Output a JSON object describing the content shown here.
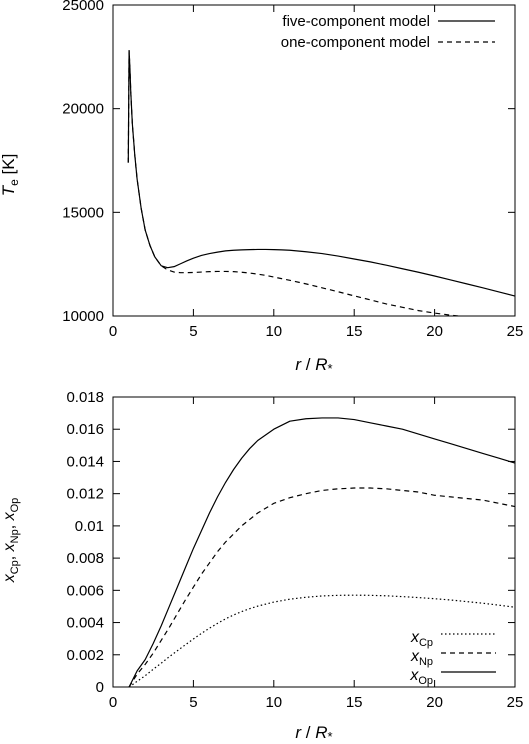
{
  "chart_data": [
    {
      "type": "line",
      "xlabel": "r / R*",
      "ylabel": "T_e [K]",
      "xlim": [
        0,
        25
      ],
      "ylim": [
        10000,
        25000
      ],
      "x_ticks": [
        "0",
        "5",
        "10",
        "15",
        "20",
        "25"
      ],
      "y_ticks": [
        "10000",
        "15000",
        "20000",
        "25000"
      ],
      "grid": false,
      "legend_position": "top-right",
      "series": [
        {
          "name": "five-component model",
          "style": "solid",
          "x": [
            0.95,
            1.0,
            1.05,
            1.1,
            1.2,
            1.35,
            1.5,
            1.75,
            2.0,
            2.3,
            2.6,
            3.0,
            3.4,
            3.8,
            4.2,
            4.6,
            5.0,
            5.5,
            6.0,
            6.5,
            7.0,
            7.5,
            8.0,
            8.5,
            9.0,
            9.5,
            10.0,
            10.5,
            11.0,
            12.0,
            13.0,
            14.0,
            15.0,
            16.0,
            17.0,
            18.0,
            19.0,
            20.0,
            21.0,
            22.0,
            23.0,
            24.0,
            25.0
          ],
          "y": [
            17400,
            22800,
            22000,
            20900,
            19300,
            17800,
            16600,
            15200,
            14150,
            13400,
            12850,
            12420,
            12330,
            12380,
            12520,
            12660,
            12790,
            12920,
            13010,
            13080,
            13140,
            13170,
            13190,
            13200,
            13210,
            13210,
            13200,
            13190,
            13170,
            13100,
            13010,
            12890,
            12750,
            12610,
            12450,
            12280,
            12110,
            11930,
            11740,
            11550,
            11360,
            11160,
            10960
          ]
        },
        {
          "name": "one-component model",
          "style": "dashed",
          "x": [
            0.95,
            1.0,
            1.05,
            1.1,
            1.2,
            1.35,
            1.5,
            1.75,
            2.0,
            2.3,
            2.6,
            3.0,
            3.4,
            3.8,
            4.2,
            4.6,
            5.0,
            5.5,
            6.0,
            6.5,
            7.0,
            7.5,
            8.0,
            8.5,
            9.0,
            9.5,
            10.0,
            11.0,
            12.0,
            13.0,
            14.0,
            15.0,
            16.0,
            17.0,
            18.0,
            19.0,
            20.0,
            21.0,
            21.5
          ],
          "y": [
            17400,
            22800,
            22000,
            20900,
            19300,
            17800,
            16600,
            15200,
            14150,
            13400,
            12850,
            12420,
            12220,
            12120,
            12090,
            12090,
            12100,
            12120,
            12140,
            12150,
            12150,
            12140,
            12110,
            12070,
            12020,
            11960,
            11880,
            11720,
            11550,
            11360,
            11170,
            10970,
            10780,
            10580,
            10420,
            10260,
            10140,
            10040,
            10000
          ]
        }
      ]
    },
    {
      "type": "line",
      "xlabel": "r / R*",
      "ylabel": "x_Cp, x_Np, x_Op",
      "xlim": [
        0,
        25
      ],
      "ylim": [
        0,
        0.018
      ],
      "x_ticks": [
        "0",
        "5",
        "10",
        "15",
        "20",
        "25"
      ],
      "y_ticks": [
        "0",
        "0.002",
        "0.004",
        "0.006",
        "0.008",
        "0.01",
        "0.012",
        "0.014",
        "0.016",
        "0.018"
      ],
      "grid": false,
      "legend_position": "bottom-right",
      "series": [
        {
          "name": "x_Cp",
          "style": "dotted",
          "x": [
            1.0,
            1.5,
            2.0,
            2.5,
            3.0,
            3.5,
            4.0,
            4.5,
            5.0,
            5.5,
            6.0,
            6.5,
            7.0,
            7.5,
            8.0,
            8.5,
            9.0,
            10.0,
            11.0,
            12.0,
            13.0,
            14.0,
            15.0,
            16.0,
            17.0,
            18.0,
            19.0,
            20.0,
            21.0,
            22.0,
            23.0,
            24.0,
            25.0
          ],
          "y": [
            0.0,
            0.00035,
            0.0007,
            0.0011,
            0.00148,
            0.00188,
            0.00225,
            0.00262,
            0.00298,
            0.00333,
            0.00365,
            0.00395,
            0.00423,
            0.00447,
            0.00468,
            0.00486,
            0.00502,
            0.00527,
            0.00545,
            0.00557,
            0.00565,
            0.00569,
            0.0057,
            0.00569,
            0.00566,
            0.00561,
            0.00555,
            0.00548,
            0.0054,
            0.0053,
            0.0052,
            0.00508,
            0.00495
          ]
        },
        {
          "name": "x_Np",
          "style": "dashed",
          "x": [
            1.0,
            1.5,
            2.0,
            2.5,
            3.0,
            3.5,
            4.0,
            4.5,
            5.0,
            5.5,
            6.0,
            6.5,
            7.0,
            7.5,
            8.0,
            8.5,
            9.0,
            10.0,
            11.0,
            12.0,
            13.0,
            14.0,
            15.0,
            16.0,
            17.0,
            18.0,
            19.0,
            20.0,
            21.0,
            22.0,
            23.0,
            24.0,
            25.0
          ],
          "y": [
            0.0,
            0.0008,
            0.0014,
            0.0021,
            0.0029,
            0.0037,
            0.00455,
            0.0054,
            0.0062,
            0.007,
            0.0077,
            0.0084,
            0.009,
            0.0095,
            0.01,
            0.0104,
            0.0108,
            0.0114,
            0.01175,
            0.012,
            0.0122,
            0.0123,
            0.01235,
            0.01235,
            0.0123,
            0.0122,
            0.0121,
            0.0119,
            0.0118,
            0.0117,
            0.0116,
            0.0114,
            0.0112
          ]
        },
        {
          "name": "x_Op",
          "style": "solid",
          "x": [
            1.0,
            1.5,
            2.0,
            2.5,
            3.0,
            3.5,
            4.0,
            4.5,
            5.0,
            5.5,
            6.0,
            6.5,
            7.0,
            7.5,
            8.0,
            8.5,
            9.0,
            10.0,
            11.0,
            12.0,
            13.0,
            14.0,
            15.0,
            16.0,
            17.0,
            18.0,
            19.0,
            20.0,
            21.0,
            22.0,
            23.0,
            24.0,
            25.0
          ],
          "y": [
            0.0,
            0.001,
            0.0017,
            0.0027,
            0.0038,
            0.005,
            0.0062,
            0.0074,
            0.0086,
            0.0097,
            0.0108,
            0.0118,
            0.0127,
            0.0135,
            0.0142,
            0.0148,
            0.0153,
            0.016,
            0.0165,
            0.01665,
            0.0167,
            0.0167,
            0.0166,
            0.0164,
            0.0162,
            0.016,
            0.0157,
            0.0154,
            0.0151,
            0.0148,
            0.0145,
            0.0142,
            0.0139
          ]
        }
      ]
    }
  ]
}
